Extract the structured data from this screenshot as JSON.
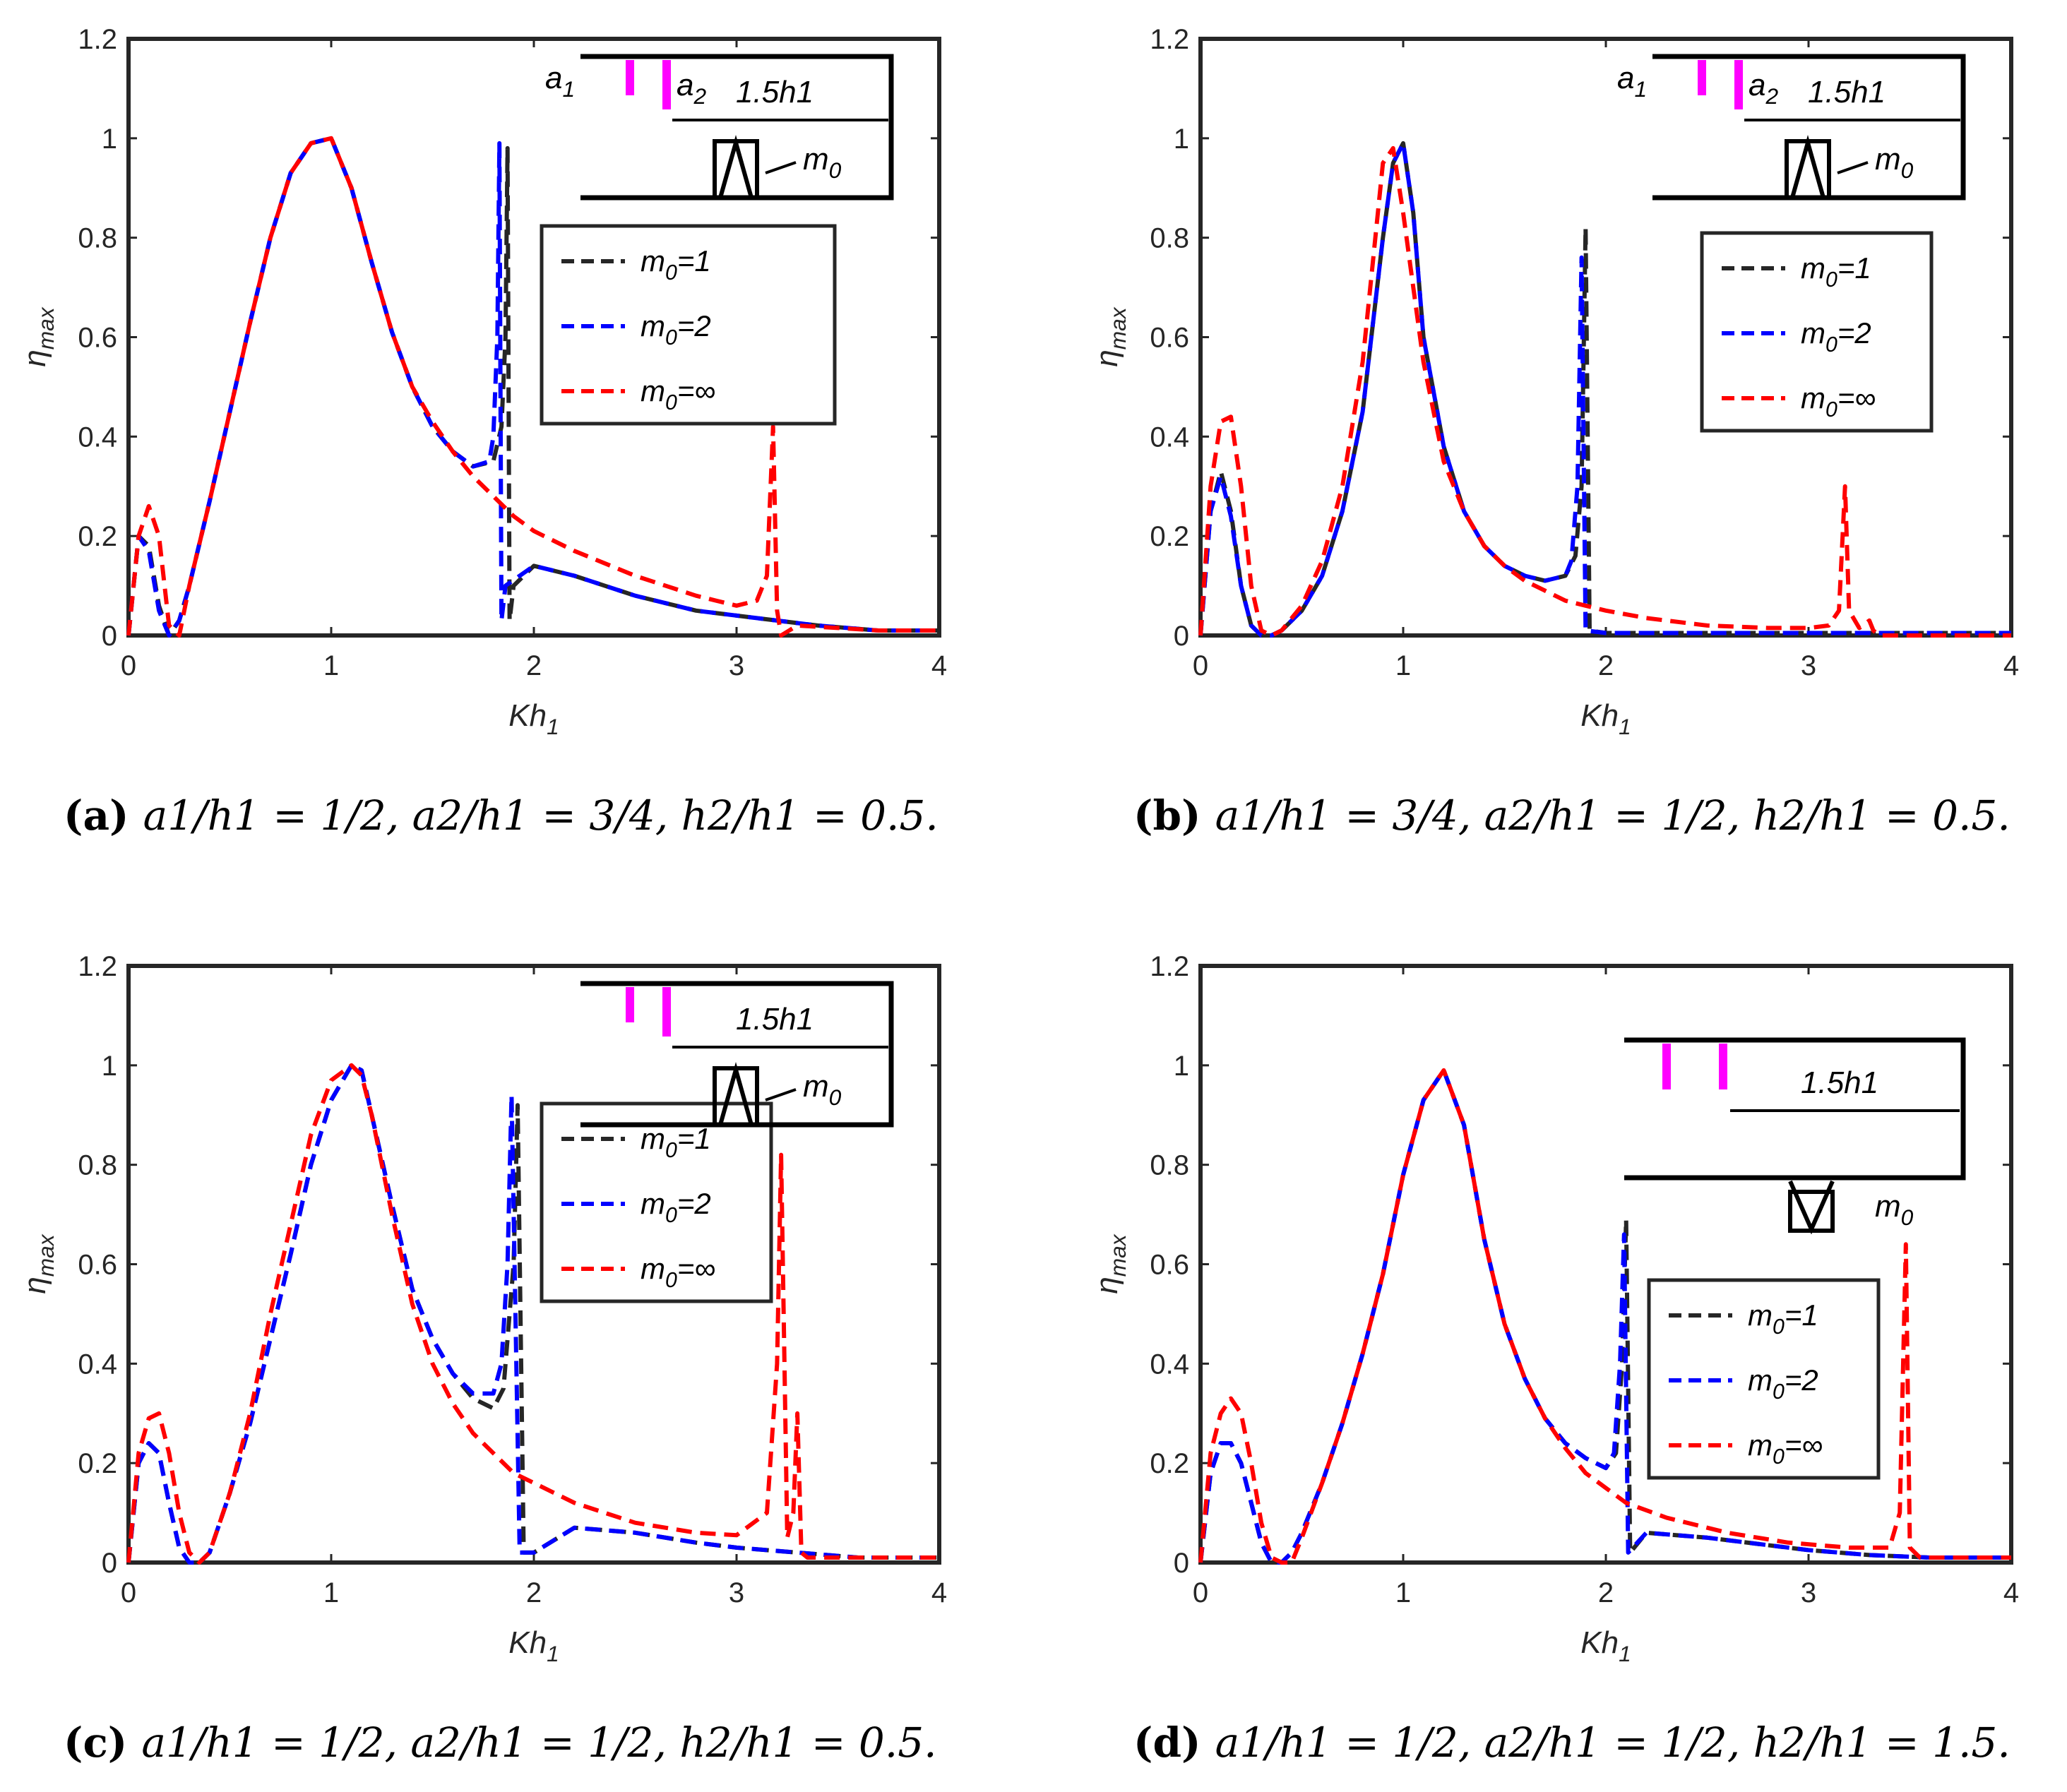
{
  "chart_data": [
    {
      "type": "line",
      "panel": "a",
      "caption_letter": "(a)",
      "caption_text": "a1/h1 = 1/2, a2/h1 = 3/4, h2/h1 = 0.5.",
      "xlabel": "Kh1",
      "ylabel": "ηmax",
      "xlim": [
        0,
        4
      ],
      "ylim": [
        0,
        1.2
      ],
      "xticks": [
        "0",
        "1",
        "2",
        "3",
        "4"
      ],
      "yticks": [
        "0",
        "0.2",
        "0.4",
        "0.6",
        "0.8",
        "1",
        "1.2"
      ],
      "inset_labels": [
        "a1",
        "a2",
        "1.5h1",
        "m0"
      ],
      "series": [
        {
          "name": "m0=1",
          "color": "#262626",
          "x": [
            0,
            0.05,
            0.1,
            0.15,
            0.2,
            0.25,
            0.3,
            0.4,
            0.5,
            0.6,
            0.7,
            0.8,
            0.9,
            1.0,
            1.1,
            1.2,
            1.3,
            1.4,
            1.5,
            1.6,
            1.7,
            1.8,
            1.84,
            1.86,
            1.87,
            1.88,
            1.9,
            2.0,
            2.2,
            2.5,
            2.8,
            3.1,
            3.4,
            3.7,
            4.0
          ],
          "y": [
            0,
            0.2,
            0.18,
            0.06,
            0,
            0.03,
            0.1,
            0.27,
            0.45,
            0.63,
            0.8,
            0.93,
            0.99,
            1.0,
            0.9,
            0.75,
            0.61,
            0.5,
            0.42,
            0.37,
            0.34,
            0.35,
            0.42,
            0.6,
            0.98,
            0.03,
            0.1,
            0.14,
            0.12,
            0.08,
            0.05,
            0.035,
            0.02,
            0.01,
            0.01
          ]
        },
        {
          "name": "m0=2",
          "color": "#0000ff",
          "x": [
            0,
            0.05,
            0.1,
            0.15,
            0.2,
            0.25,
            0.3,
            0.4,
            0.5,
            0.6,
            0.7,
            0.8,
            0.9,
            1.0,
            1.1,
            1.2,
            1.3,
            1.4,
            1.5,
            1.6,
            1.7,
            1.78,
            1.8,
            1.82,
            1.83,
            1.84,
            1.86,
            2.0,
            2.2,
            2.5,
            2.8,
            3.1,
            3.4,
            3.7,
            4.0
          ],
          "y": [
            0,
            0.2,
            0.17,
            0.05,
            0,
            0.03,
            0.1,
            0.27,
            0.45,
            0.63,
            0.8,
            0.93,
            0.99,
            1.0,
            0.9,
            0.75,
            0.61,
            0.5,
            0.42,
            0.37,
            0.34,
            0.35,
            0.4,
            0.6,
            0.99,
            0.03,
            0.1,
            0.14,
            0.12,
            0.08,
            0.05,
            0.035,
            0.02,
            0.01,
            0.01
          ]
        },
        {
          "name": "m0=∞",
          "color": "#ff0000",
          "x": [
            0,
            0.05,
            0.1,
            0.15,
            0.2,
            0.25,
            0.3,
            0.4,
            0.5,
            0.6,
            0.7,
            0.8,
            0.9,
            1.0,
            1.1,
            1.2,
            1.3,
            1.4,
            1.5,
            1.6,
            1.7,
            1.8,
            1.9,
            2.0,
            2.2,
            2.5,
            2.8,
            3.0,
            3.1,
            3.15,
            3.18,
            3.2,
            3.22,
            3.3,
            3.5,
            3.7,
            4.0
          ],
          "y": [
            0,
            0.2,
            0.26,
            0.2,
            0.02,
            0,
            0.1,
            0.27,
            0.45,
            0.63,
            0.8,
            0.93,
            0.99,
            1.0,
            0.9,
            0.75,
            0.61,
            0.5,
            0.43,
            0.37,
            0.32,
            0.28,
            0.24,
            0.21,
            0.17,
            0.12,
            0.08,
            0.06,
            0.07,
            0.12,
            0.42,
            0.05,
            0,
            0.02,
            0.015,
            0.01,
            0.01
          ]
        }
      ]
    },
    {
      "type": "line",
      "panel": "b",
      "caption_letter": "(b)",
      "caption_text": "a1/h1 = 3/4, a2/h1 = 1/2, h2/h1 = 0.5.",
      "xlabel": "Kh1",
      "ylabel": "ηmax",
      "xlim": [
        0,
        4
      ],
      "ylim": [
        0,
        1.2
      ],
      "xticks": [
        "0",
        "1",
        "2",
        "3",
        "4"
      ],
      "yticks": [
        "0",
        "0.2",
        "0.4",
        "0.6",
        "0.8",
        "1",
        "1.2"
      ],
      "inset_labels": [
        "a1",
        "a2",
        "1.5h1",
        "m0"
      ],
      "series": [
        {
          "name": "m0=1",
          "color": "#262626",
          "x": [
            0,
            0.05,
            0.1,
            0.15,
            0.2,
            0.25,
            0.3,
            0.35,
            0.4,
            0.5,
            0.6,
            0.7,
            0.8,
            0.9,
            0.95,
            1.0,
            1.05,
            1.1,
            1.2,
            1.3,
            1.4,
            1.5,
            1.6,
            1.7,
            1.8,
            1.85,
            1.88,
            1.9,
            1.92,
            2.0,
            2.5,
            3.0,
            3.5,
            4.0
          ],
          "y": [
            0,
            0.25,
            0.33,
            0.25,
            0.1,
            0.02,
            0,
            0,
            0.01,
            0.05,
            0.12,
            0.25,
            0.45,
            0.8,
            0.95,
            0.99,
            0.85,
            0.6,
            0.38,
            0.25,
            0.18,
            0.14,
            0.12,
            0.11,
            0.12,
            0.16,
            0.3,
            0.82,
            0.01,
            0.005,
            0.005,
            0.005,
            0.005,
            0.005
          ]
        },
        {
          "name": "m0=2",
          "color": "#0000ff",
          "x": [
            0,
            0.05,
            0.1,
            0.15,
            0.2,
            0.25,
            0.3,
            0.35,
            0.4,
            0.5,
            0.6,
            0.7,
            0.8,
            0.9,
            0.95,
            1.0,
            1.05,
            1.1,
            1.2,
            1.3,
            1.4,
            1.5,
            1.6,
            1.7,
            1.8,
            1.83,
            1.86,
            1.88,
            1.9,
            2.0,
            2.5,
            3.0,
            3.5,
            4.0
          ],
          "y": [
            0,
            0.25,
            0.32,
            0.24,
            0.1,
            0.02,
            0,
            0,
            0.01,
            0.05,
            0.12,
            0.25,
            0.45,
            0.8,
            0.95,
            0.99,
            0.85,
            0.6,
            0.38,
            0.25,
            0.18,
            0.14,
            0.12,
            0.11,
            0.12,
            0.15,
            0.3,
            0.76,
            0.01,
            0.005,
            0.005,
            0.005,
            0.005,
            0.005
          ]
        },
        {
          "name": "m0=∞",
          "color": "#ff0000",
          "x": [
            0,
            0.05,
            0.1,
            0.15,
            0.2,
            0.25,
            0.3,
            0.35,
            0.4,
            0.5,
            0.6,
            0.7,
            0.8,
            0.85,
            0.9,
            0.95,
            1.0,
            1.05,
            1.1,
            1.2,
            1.3,
            1.4,
            1.5,
            1.6,
            1.7,
            1.8,
            1.9,
            2.0,
            2.2,
            2.5,
            2.8,
            3.0,
            3.1,
            3.15,
            3.18,
            3.2,
            3.25,
            3.3,
            3.32,
            3.35,
            3.5,
            4.0
          ],
          "y": [
            0,
            0.3,
            0.43,
            0.44,
            0.3,
            0.1,
            0.01,
            0,
            0.01,
            0.06,
            0.15,
            0.3,
            0.55,
            0.75,
            0.95,
            0.98,
            0.85,
            0.7,
            0.55,
            0.35,
            0.25,
            0.18,
            0.14,
            0.11,
            0.09,
            0.07,
            0.06,
            0.05,
            0.035,
            0.02,
            0.015,
            0.015,
            0.02,
            0.05,
            0.3,
            0.05,
            0.015,
            0.03,
            0.01,
            0,
            0,
            0
          ]
        }
      ]
    },
    {
      "type": "line",
      "panel": "c",
      "caption_letter": "(c)",
      "caption_text": "a1/h1 = 1/2, a2/h1 = 1/2, h2/h1 = 0.5.",
      "xlabel": "Kh1",
      "ylabel": "ηmax",
      "xlim": [
        0,
        4
      ],
      "ylim": [
        0,
        1.2
      ],
      "xticks": [
        "0",
        "1",
        "2",
        "3",
        "4"
      ],
      "yticks": [
        "0",
        "0.2",
        "0.4",
        "0.6",
        "0.8",
        "1",
        "1.2"
      ],
      "inset_labels": [
        "1.5h1",
        "m0"
      ],
      "series": [
        {
          "name": "m0=1",
          "color": "#262626",
          "x": [
            0,
            0.05,
            0.1,
            0.15,
            0.2,
            0.25,
            0.3,
            0.35,
            0.4,
            0.5,
            0.6,
            0.7,
            0.8,
            0.9,
            1.0,
            1.1,
            1.15,
            1.2,
            1.3,
            1.4,
            1.5,
            1.6,
            1.7,
            1.8,
            1.85,
            1.9,
            1.92,
            1.95,
            2.0,
            2.2,
            2.5,
            2.8,
            3.0,
            3.3,
            3.6,
            4.0
          ],
          "y": [
            0,
            0.2,
            0.24,
            0.22,
            0.12,
            0.03,
            0,
            0,
            0.02,
            0.14,
            0.28,
            0.45,
            0.62,
            0.8,
            0.93,
            1.0,
            0.99,
            0.9,
            0.72,
            0.55,
            0.45,
            0.38,
            0.33,
            0.31,
            0.35,
            0.6,
            0.92,
            0.02,
            0.02,
            0.07,
            0.06,
            0.04,
            0.03,
            0.02,
            0.01,
            0.01
          ]
        },
        {
          "name": "m0=2",
          "color": "#0000ff",
          "x": [
            0,
            0.05,
            0.1,
            0.15,
            0.2,
            0.25,
            0.3,
            0.35,
            0.4,
            0.5,
            0.6,
            0.7,
            0.8,
            0.9,
            1.0,
            1.1,
            1.15,
            1.2,
            1.3,
            1.4,
            1.5,
            1.6,
            1.7,
            1.8,
            1.84,
            1.87,
            1.89,
            1.93,
            2.0,
            2.2,
            2.5,
            2.8,
            3.0,
            3.3,
            3.6,
            4.0
          ],
          "y": [
            0,
            0.2,
            0.24,
            0.22,
            0.12,
            0.03,
            0,
            0,
            0.02,
            0.14,
            0.28,
            0.45,
            0.62,
            0.8,
            0.93,
            1.0,
            0.99,
            0.9,
            0.72,
            0.55,
            0.45,
            0.38,
            0.34,
            0.34,
            0.4,
            0.6,
            0.94,
            0.02,
            0.02,
            0.07,
            0.06,
            0.04,
            0.03,
            0.02,
            0.01,
            0.01
          ]
        },
        {
          "name": "m0=∞",
          "color": "#ff0000",
          "x": [
            0,
            0.05,
            0.1,
            0.15,
            0.2,
            0.25,
            0.3,
            0.35,
            0.4,
            0.5,
            0.6,
            0.7,
            0.8,
            0.9,
            1.0,
            1.1,
            1.15,
            1.2,
            1.3,
            1.4,
            1.5,
            1.6,
            1.7,
            1.8,
            1.9,
            2.0,
            2.2,
            2.5,
            2.8,
            3.0,
            3.15,
            3.2,
            3.22,
            3.25,
            3.28,
            3.3,
            3.32,
            3.35,
            3.5,
            4.0
          ],
          "y": [
            0,
            0.22,
            0.29,
            0.3,
            0.22,
            0.1,
            0.02,
            0,
            0.02,
            0.14,
            0.3,
            0.5,
            0.68,
            0.86,
            0.97,
            1.0,
            0.98,
            0.9,
            0.7,
            0.52,
            0.4,
            0.32,
            0.26,
            0.22,
            0.18,
            0.16,
            0.12,
            0.08,
            0.06,
            0.055,
            0.1,
            0.4,
            0.82,
            0.05,
            0.1,
            0.3,
            0.02,
            0.01,
            0.01,
            0.01
          ]
        }
      ]
    },
    {
      "type": "line",
      "panel": "d",
      "caption_letter": "(d)",
      "caption_text": "a1/h1 = 1/2, a2/h1 = 1/2, h2/h1 = 1.5.",
      "xlabel": "Kh1",
      "ylabel": "ηmax",
      "xlim": [
        0,
        4
      ],
      "ylim": [
        0,
        1.2
      ],
      "xticks": [
        "0",
        "1",
        "2",
        "3",
        "4"
      ],
      "yticks": [
        "0",
        "0.2",
        "0.4",
        "0.6",
        "0.8",
        "1",
        "1.2"
      ],
      "inset_labels": [
        "1.5h1",
        "m0"
      ],
      "series": [
        {
          "name": "m0=1",
          "color": "#262626",
          "x": [
            0,
            0.05,
            0.1,
            0.15,
            0.2,
            0.25,
            0.3,
            0.35,
            0.4,
            0.45,
            0.5,
            0.6,
            0.7,
            0.8,
            0.9,
            1.0,
            1.1,
            1.2,
            1.3,
            1.4,
            1.5,
            1.6,
            1.7,
            1.8,
            1.9,
            2.0,
            2.05,
            2.08,
            2.1,
            2.12,
            2.2,
            2.5,
            2.8,
            3.0,
            3.3,
            3.6,
            4.0
          ],
          "y": [
            0,
            0.18,
            0.24,
            0.24,
            0.2,
            0.12,
            0.04,
            0,
            0,
            0.02,
            0.06,
            0.16,
            0.28,
            0.42,
            0.58,
            0.78,
            0.93,
            0.99,
            0.88,
            0.65,
            0.48,
            0.37,
            0.29,
            0.24,
            0.21,
            0.19,
            0.22,
            0.4,
            0.69,
            0.02,
            0.06,
            0.05,
            0.035,
            0.025,
            0.015,
            0.01,
            0.01
          ]
        },
        {
          "name": "m0=2",
          "color": "#0000ff",
          "x": [
            0,
            0.05,
            0.1,
            0.15,
            0.2,
            0.25,
            0.3,
            0.35,
            0.4,
            0.45,
            0.5,
            0.6,
            0.7,
            0.8,
            0.9,
            1.0,
            1.1,
            1.2,
            1.3,
            1.4,
            1.5,
            1.6,
            1.7,
            1.8,
            1.9,
            2.0,
            2.04,
            2.07,
            2.09,
            2.11,
            2.2,
            2.5,
            2.8,
            3.0,
            3.3,
            3.6,
            4.0
          ],
          "y": [
            0,
            0.18,
            0.24,
            0.24,
            0.2,
            0.12,
            0.04,
            0,
            0,
            0.02,
            0.06,
            0.16,
            0.28,
            0.42,
            0.58,
            0.78,
            0.93,
            0.99,
            0.88,
            0.65,
            0.48,
            0.37,
            0.29,
            0.24,
            0.21,
            0.19,
            0.22,
            0.4,
            0.66,
            0.02,
            0.06,
            0.05,
            0.035,
            0.025,
            0.015,
            0.01,
            0.01
          ]
        },
        {
          "name": "m0=∞",
          "color": "#ff0000",
          "x": [
            0,
            0.05,
            0.1,
            0.15,
            0.2,
            0.25,
            0.3,
            0.35,
            0.4,
            0.45,
            0.5,
            0.6,
            0.7,
            0.8,
            0.9,
            1.0,
            1.1,
            1.2,
            1.3,
            1.4,
            1.5,
            1.6,
            1.7,
            1.8,
            1.9,
            2.0,
            2.1,
            2.3,
            2.6,
            2.9,
            3.2,
            3.4,
            3.45,
            3.48,
            3.5,
            3.55,
            3.6,
            4.0
          ],
          "y": [
            0,
            0.22,
            0.3,
            0.33,
            0.3,
            0.2,
            0.08,
            0.01,
            0,
            0,
            0.05,
            0.16,
            0.28,
            0.42,
            0.58,
            0.78,
            0.93,
            0.99,
            0.88,
            0.65,
            0.48,
            0.37,
            0.29,
            0.23,
            0.18,
            0.15,
            0.12,
            0.09,
            0.06,
            0.04,
            0.03,
            0.03,
            0.1,
            0.64,
            0.03,
            0.01,
            0.01,
            0.01
          ]
        }
      ]
    }
  ],
  "legend_labels": [
    "m0=1",
    "m0=2",
    "m0=∞"
  ]
}
